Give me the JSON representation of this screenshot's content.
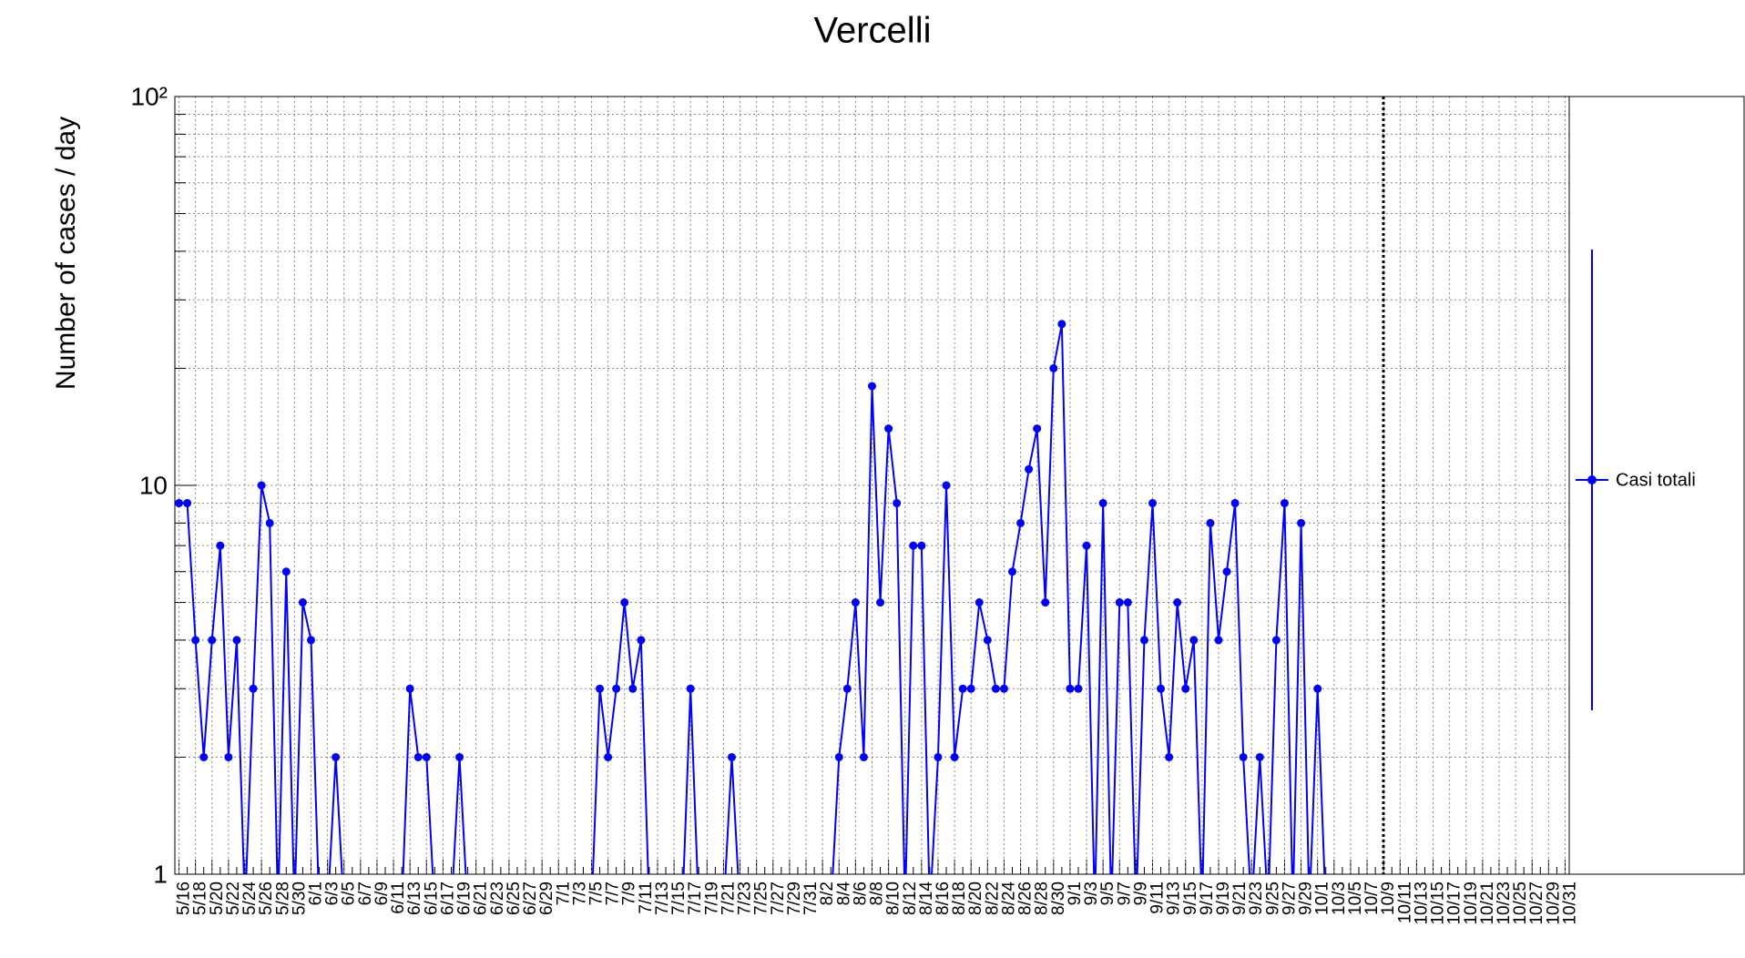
{
  "chart_data": {
    "type": "line",
    "title": "Vercelli",
    "y_label": "Number of cases / day",
    "log_y": true,
    "grid": true,
    "ylim": [
      1,
      100
    ],
    "yticks": [
      1,
      10,
      {
        "value": 100,
        "label": "10²"
      }
    ],
    "y_minor_ticks": [
      2,
      3,
      4,
      5,
      6,
      7,
      8,
      9,
      20,
      30,
      40,
      50,
      60,
      70,
      80,
      90
    ],
    "categories": [
      "5/16",
      null,
      "5/18",
      null,
      "5/20",
      null,
      "5/22",
      null,
      "5/24",
      null,
      "5/26",
      null,
      "5/28",
      null,
      "5/30",
      null,
      "6/1",
      null,
      "6/3",
      null,
      "6/5",
      null,
      "6/7",
      null,
      "6/9",
      null,
      "6/11",
      null,
      "6/13",
      null,
      "6/15",
      null,
      "6/17",
      null,
      "6/19",
      null,
      "6/21",
      null,
      "6/23",
      null,
      "6/25",
      null,
      "6/27",
      null,
      "6/29",
      null,
      "7/1",
      null,
      "7/3",
      null,
      "7/5",
      null,
      "7/7",
      null,
      "7/9",
      null,
      "7/11",
      null,
      "7/13",
      null,
      "7/15",
      null,
      "7/17",
      null,
      "7/19",
      null,
      "7/21",
      null,
      "7/23",
      null,
      "7/25",
      null,
      "7/27",
      null,
      "7/29",
      null,
      "7/31",
      null,
      "8/2",
      null,
      "8/4",
      null,
      "8/6",
      null,
      "8/8",
      null,
      "8/10",
      null,
      "8/12",
      null,
      "8/14",
      null,
      "8/16",
      null,
      "8/18",
      null,
      "8/20",
      null,
      "8/22",
      null,
      "8/24",
      null,
      "8/26",
      null,
      "8/28",
      null,
      "8/30",
      null,
      "9/1",
      null,
      "9/3",
      null,
      "9/5",
      null,
      "9/7",
      null,
      "9/9",
      null,
      "9/11",
      null,
      "9/13",
      null,
      "9/15",
      null,
      "9/17",
      null,
      "9/19",
      null,
      "9/21",
      null,
      "9/23",
      null,
      "9/25",
      null,
      "9/27",
      null,
      "9/29",
      null,
      "10/1",
      null,
      "10/3",
      null,
      "10/5",
      null,
      "10/7",
      null,
      "10/9",
      null,
      "10/11",
      null,
      "10/13",
      null,
      "10/15",
      null,
      "10/17",
      null,
      "10/19",
      null,
      "10/21",
      null,
      "10/23",
      null,
      "10/25",
      null,
      "10/27",
      null,
      "10/29",
      null,
      "10/31"
    ],
    "series": [
      {
        "name": "Casi totali",
        "color": "#0000ff",
        "values": [
          9,
          9,
          4,
          2,
          4,
          7,
          2,
          4,
          0,
          3,
          10,
          8,
          0,
          6,
          0,
          5,
          4,
          0,
          0,
          2,
          0,
          0,
          0,
          0,
          0,
          0,
          0,
          0,
          3,
          2,
          2,
          0,
          0,
          0,
          2,
          0,
          0,
          0,
          0,
          0,
          0,
          0,
          0,
          0,
          0,
          0,
          0,
          0,
          0,
          0,
          0,
          3,
          2,
          3,
          5,
          3,
          4,
          0,
          0,
          0,
          0,
          0,
          3,
          0,
          0,
          0,
          0,
          2,
          0,
          0,
          0,
          0,
          0,
          0,
          0,
          0,
          0,
          0,
          0,
          0,
          2,
          3,
          5,
          2,
          18,
          5,
          14,
          9,
          0,
          7,
          7,
          0,
          2,
          10,
          2,
          3,
          3,
          5,
          4,
          3,
          3,
          6,
          8,
          11,
          14,
          5,
          20,
          26,
          3,
          3,
          7,
          0,
          9,
          0,
          5,
          5,
          0,
          4,
          9,
          3,
          2,
          5,
          3,
          4,
          0,
          8,
          4,
          6,
          9,
          2,
          0,
          2,
          0,
          4,
          9,
          0,
          8,
          0,
          3,
          0,
          null,
          null,
          null,
          null,
          null,
          null,
          null,
          null,
          null,
          null,
          null,
          null,
          null,
          null,
          null,
          null,
          null,
          null,
          null,
          null,
          null,
          null,
          null,
          null,
          null,
          null,
          null,
          null,
          null
        ]
      }
    ]
  }
}
